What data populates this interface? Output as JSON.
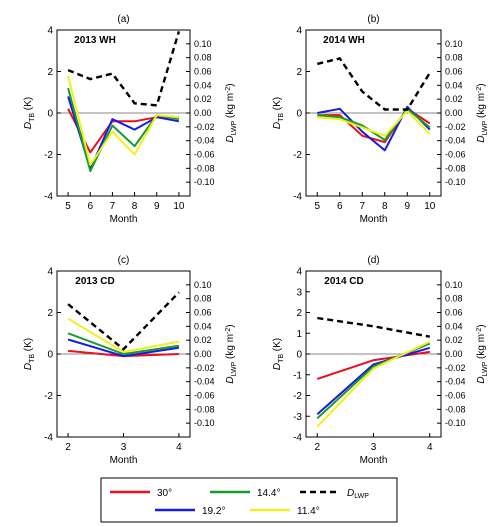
{
  "colors": {
    "30": "#e8101a",
    "19.2": "#1a1ae8",
    "14.4": "#1a9a2a",
    "11.4": "#f0f020",
    "DLWP": "#000000"
  },
  "legend": [
    {
      "key": "30",
      "label": "30°",
      "dashed": false
    },
    {
      "key": "14.4",
      "label": "14.4°",
      "dashed": false
    },
    {
      "key": "DLWP",
      "label": "D_LWP",
      "dashed": true
    },
    {
      "key": "19.2",
      "label": "19.2°",
      "dashed": false
    },
    {
      "key": "11.4",
      "label": "11.4°",
      "dashed": false
    }
  ],
  "chart_data": [
    {
      "type": "line",
      "panel": "(a)",
      "title": "2013 WH",
      "xlabel": "Month",
      "ylabel_left": "D_TB (K)",
      "ylabel_right": "D_LWP (kg m-2)",
      "x": [
        5,
        6,
        7,
        8,
        9,
        10
      ],
      "xlim": [
        4.5,
        10.5
      ],
      "ylim_left": [
        -4,
        4
      ],
      "ylim_right": [
        -0.12,
        0.12
      ],
      "yticks_left": [
        "-4",
        "-2",
        "0",
        "2",
        "4"
      ],
      "yticks_right": [
        "0.10",
        "0.08",
        "0.06",
        "0.04",
        "0.02",
        "0.00",
        "-0.02",
        "-0.04",
        "-0.06",
        "-0.08",
        "-0.10"
      ],
      "series": [
        {
          "name": "30°",
          "key": "30",
          "values": [
            0.2,
            -1.9,
            -0.4,
            -0.4,
            -0.2,
            -0.2
          ]
        },
        {
          "name": "19.2°",
          "key": "19.2",
          "values": [
            0.8,
            -2.7,
            -0.3,
            -0.8,
            -0.2,
            -0.4
          ]
        },
        {
          "name": "14.4°",
          "key": "14.4",
          "values": [
            1.2,
            -2.8,
            -0.6,
            -1.6,
            -0.1,
            -0.3
          ]
        },
        {
          "name": "11.4°",
          "key": "11.4",
          "values": [
            1.8,
            -2.5,
            -0.9,
            -2.0,
            -0.1,
            -0.2
          ]
        }
      ],
      "lwp": [
        0.062,
        0.049,
        0.057,
        0.014,
        0.011,
        0.118
      ]
    },
    {
      "type": "line",
      "panel": "(b)",
      "title": "2014 WH",
      "xlabel": "Month",
      "ylabel_left": "D_TB (K)",
      "ylabel_right": "D_LWP (kg m-2)",
      "x": [
        5,
        6,
        7,
        8,
        9,
        10
      ],
      "xlim": [
        4.5,
        10.5
      ],
      "ylim_left": [
        -4,
        4
      ],
      "ylim_right": [
        -0.12,
        0.12
      ],
      "yticks_left": [
        "-4",
        "-2",
        "0",
        "2",
        "4"
      ],
      "yticks_right": [
        "0.10",
        "0.08",
        "0.06",
        "0.04",
        "0.02",
        "0.00",
        "-0.02",
        "-0.04",
        "-0.06",
        "-0.08",
        "-0.10"
      ],
      "series": [
        {
          "name": "30°",
          "key": "30",
          "values": [
            -0.1,
            -0.1,
            -1.1,
            -1.4,
            0.2,
            -0.5
          ]
        },
        {
          "name": "19.2°",
          "key": "19.2",
          "values": [
            0.0,
            0.2,
            -0.9,
            -1.8,
            0.3,
            -0.8
          ]
        },
        {
          "name": "14.4°",
          "key": "14.4",
          "values": [
            -0.1,
            -0.2,
            -0.6,
            -1.3,
            0.2,
            -0.7
          ]
        },
        {
          "name": "11.4°",
          "key": "11.4",
          "values": [
            -0.2,
            -0.3,
            -0.7,
            -1.1,
            0.1,
            -1.0
          ]
        }
      ],
      "lwp": [
        0.071,
        0.079,
        0.031,
        0.005,
        0.005,
        0.058
      ]
    },
    {
      "type": "line",
      "panel": "(c)",
      "title": "2013 CD",
      "xlabel": "Month",
      "ylabel_left": "D_TB (K)",
      "ylabel_right": "D_LWP (kg m-2)",
      "x": [
        2,
        3,
        4
      ],
      "xlim": [
        1.8,
        4.2
      ],
      "ylim_left": [
        -4,
        4
      ],
      "ylim_right": [
        -0.12,
        0.12
      ],
      "yticks_left": [
        "-4",
        "-2",
        "0",
        "2",
        "4"
      ],
      "yticks_right": [
        "0.10",
        "0.08",
        "0.06",
        "0.04",
        "0.02",
        "0.00",
        "-0.02",
        "-0.04",
        "-0.06",
        "-0.08",
        "-0.10"
      ],
      "series": [
        {
          "name": "30°",
          "key": "30",
          "values": [
            0.15,
            -0.1,
            0.0
          ]
        },
        {
          "name": "19.2°",
          "key": "19.2",
          "values": [
            0.7,
            -0.1,
            0.3
          ]
        },
        {
          "name": "14.4°",
          "key": "14.4",
          "values": [
            1.0,
            0.0,
            0.4
          ]
        },
        {
          "name": "11.4°",
          "key": "11.4",
          "values": [
            1.7,
            0.1,
            0.6
          ]
        }
      ],
      "lwp": [
        0.072,
        0.007,
        0.089
      ]
    },
    {
      "type": "line",
      "panel": "(d)",
      "title": "2014 CD",
      "xlabel": "Month",
      "ylabel_left": "D_TB (K)",
      "ylabel_right": "D_LWP (kg m-2)",
      "x": [
        2,
        3,
        4
      ],
      "xlim": [
        1.8,
        4.2
      ],
      "ylim_left": [
        -4,
        4
      ],
      "ylim_right": [
        -0.12,
        0.12
      ],
      "yticks_left": [
        "-4",
        "-3",
        "-2",
        "-1",
        "0",
        "1",
        "2",
        "3",
        "4"
      ],
      "yticks_right": [
        "0.10",
        "0.08",
        "0.06",
        "0.04",
        "0.02",
        "0.00",
        "-0.02",
        "-0.04",
        "-0.06",
        "-0.08",
        "-0.10"
      ],
      "series": [
        {
          "name": "30°",
          "key": "30",
          "values": [
            -1.2,
            -0.3,
            0.1
          ]
        },
        {
          "name": "19.2°",
          "key": "19.2",
          "values": [
            -2.9,
            -0.5,
            0.3
          ]
        },
        {
          "name": "14.4°",
          "key": "14.4",
          "values": [
            -3.1,
            -0.6,
            0.5
          ]
        },
        {
          "name": "11.4°",
          "key": "11.4",
          "values": [
            -3.5,
            -0.7,
            0.6
          ]
        }
      ],
      "lwp": [
        0.052,
        0.04,
        0.025
      ]
    }
  ]
}
